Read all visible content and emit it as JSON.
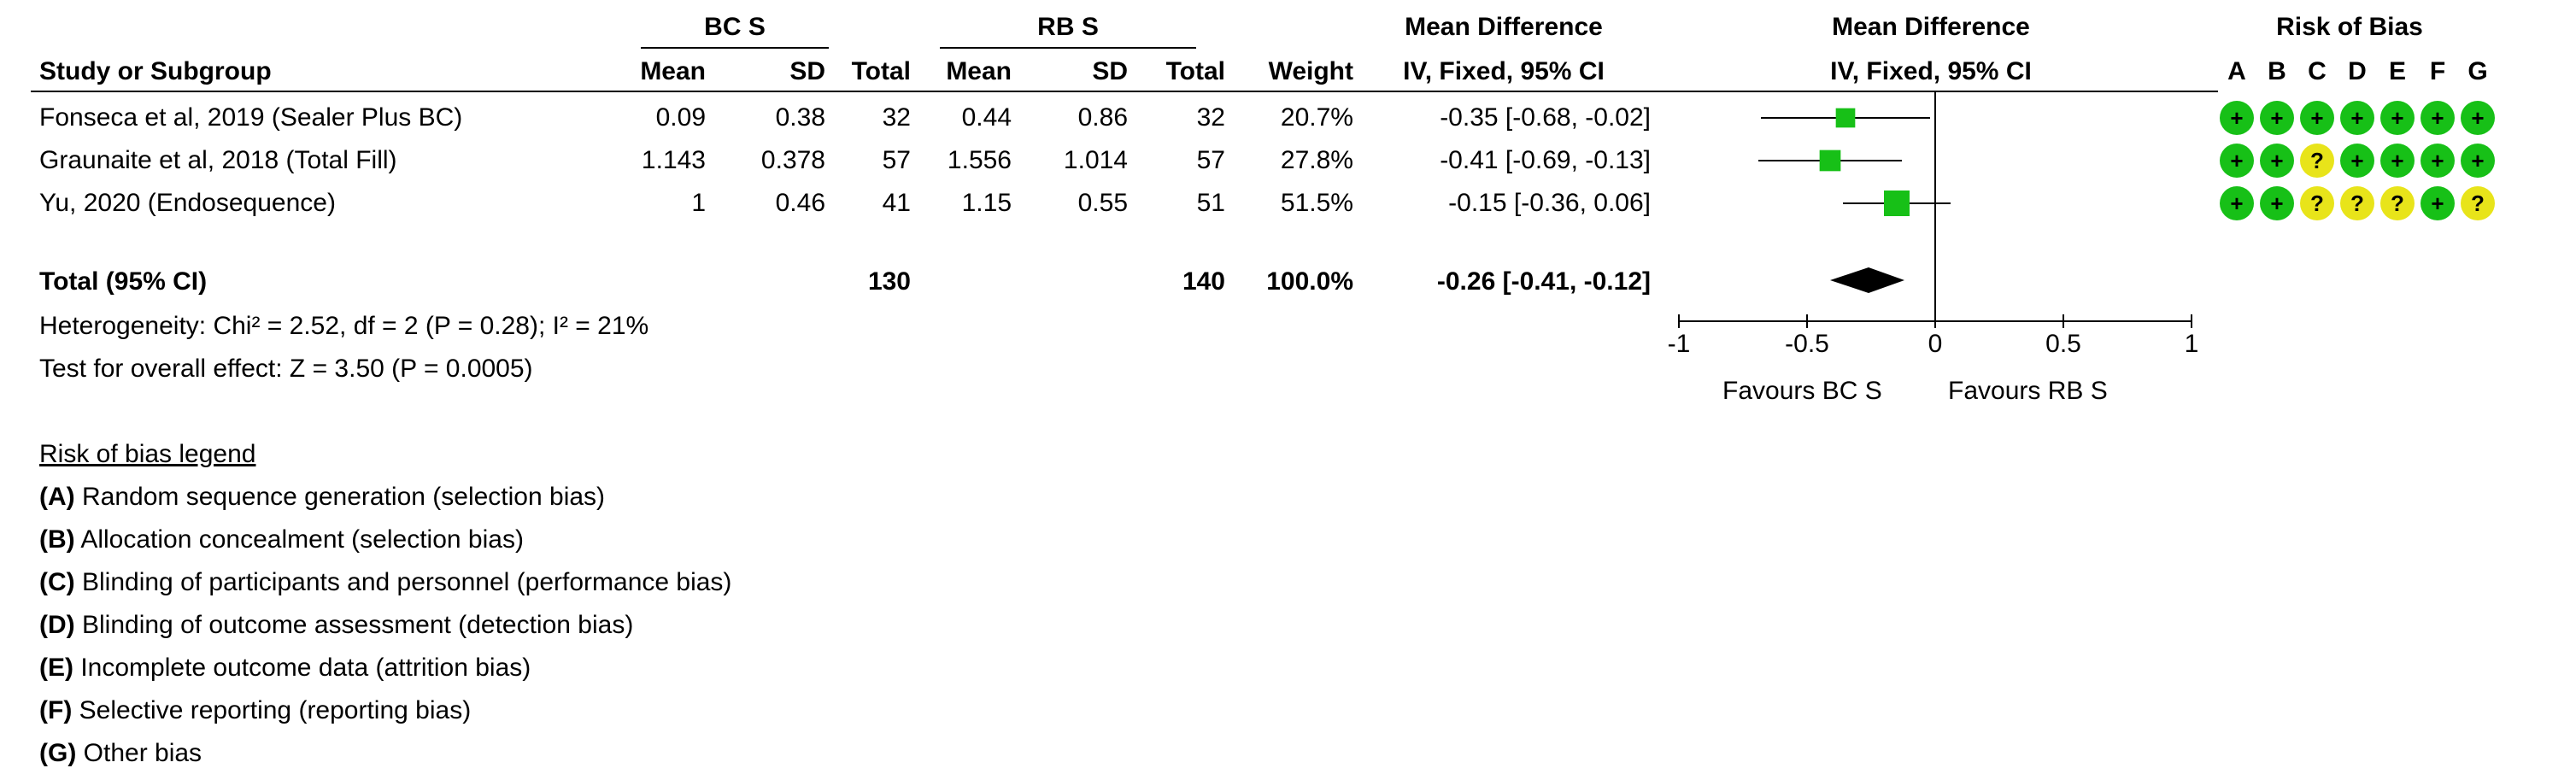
{
  "headers": {
    "group1": "BC S",
    "group2": "RB S",
    "effect_col": "Mean Difference",
    "effect_sub": "IV, Fixed, 95% CI",
    "plot_col": "Mean Difference",
    "plot_sub": "IV, Fixed, 95% CI",
    "rob_col": "Risk of Bias",
    "study": "Study or Subgroup",
    "mean": "Mean",
    "sd": "SD",
    "total": "Total",
    "weight": "Weight",
    "rob_letters": [
      "A",
      "B",
      "C",
      "D",
      "E",
      "F",
      "G"
    ]
  },
  "studies": [
    {
      "name": "Fonseca et al, 2019 (Sealer Plus BC)",
      "mean1": "0.09",
      "sd1": "0.38",
      "n1": "32",
      "mean2": "0.44",
      "sd2": "0.86",
      "n2": "32",
      "weight": "20.7%",
      "ci_text": "-0.35 [-0.68, -0.02]",
      "rob": [
        "low",
        "low",
        "low",
        "low",
        "low",
        "low",
        "low"
      ]
    },
    {
      "name": "Graunaite et al, 2018 (Total Fill)",
      "mean1": "1.143",
      "sd1": "0.378",
      "n1": "57",
      "mean2": "1.556",
      "sd2": "1.014",
      "n2": "57",
      "weight": "27.8%",
      "ci_text": "-0.41 [-0.69, -0.13]",
      "rob": [
        "low",
        "low",
        "unclear",
        "low",
        "low",
        "low",
        "low"
      ]
    },
    {
      "name": "Yu, 2020 (Endosequence)",
      "mean1": "1",
      "sd1": "0.46",
      "n1": "41",
      "mean2": "1.15",
      "sd2": "0.55",
      "n2": "51",
      "weight": "51.5%",
      "ci_text": "-0.15 [-0.36, 0.06]",
      "rob": [
        "low",
        "low",
        "unclear",
        "unclear",
        "unclear",
        "low",
        "unclear"
      ]
    }
  ],
  "total": {
    "label": "Total (95% CI)",
    "n1": "130",
    "n2": "140",
    "weight": "100.0%",
    "ci_text": "-0.26 [-0.41, -0.12]"
  },
  "heterogeneity": "Heterogeneity: Chi² = 2.52, df = 2 (P = 0.28); I² = 21%",
  "overall_effect": "Test for overall effect: Z = 3.50 (P = 0.0005)",
  "favours_left": "Favours BC S",
  "favours_right": "Favours RB S",
  "rob_symbols": {
    "low": "+",
    "unclear": "?"
  },
  "rob_colors": {
    "low": "#17c017",
    "unclear": "#e8e41a"
  },
  "marker_color": "#17c017",
  "legend": {
    "title": "Risk of bias legend",
    "items": [
      {
        "key": "(A)",
        "text": " Random sequence generation (selection bias)"
      },
      {
        "key": "(B)",
        "text": " Allocation concealment (selection bias)"
      },
      {
        "key": "(C)",
        "text": " Blinding of participants and personnel (performance bias)"
      },
      {
        "key": "(D)",
        "text": " Blinding of outcome assessment (detection bias)"
      },
      {
        "key": "(E)",
        "text": " Incomplete outcome data (attrition bias)"
      },
      {
        "key": "(F)",
        "text": " Selective reporting (reporting bias)"
      },
      {
        "key": "(G)",
        "text": " Other bias"
      }
    ]
  },
  "chart_data": {
    "type": "forest",
    "xlim": [
      -1,
      1
    ],
    "ticks": [
      "-1",
      "-0.5",
      "0",
      "0.5",
      "1"
    ],
    "tick_values": [
      -1,
      -0.5,
      0,
      0.5,
      1
    ],
    "studies": [
      {
        "label": "Fonseca et al, 2019 (Sealer Plus BC)",
        "md": -0.35,
        "lower": -0.68,
        "upper": -0.02,
        "weight": 20.7
      },
      {
        "label": "Graunaite et al, 2018 (Total Fill)",
        "md": -0.41,
        "lower": -0.69,
        "upper": -0.13,
        "weight": 27.8
      },
      {
        "label": "Yu, 2020 (Endosequence)",
        "md": -0.15,
        "lower": -0.36,
        "upper": 0.06,
        "weight": 51.5
      }
    ],
    "pooled": {
      "md": -0.26,
      "lower": -0.41,
      "upper": -0.12
    }
  }
}
